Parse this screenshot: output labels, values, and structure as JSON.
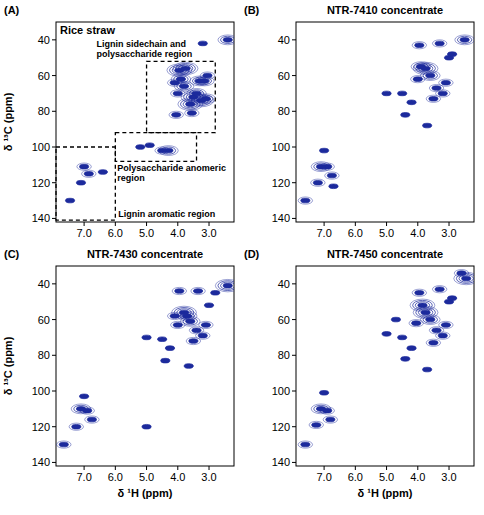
{
  "chart_data": [
    {
      "type": "scatter",
      "label": "(A)",
      "title": "Rice straw",
      "y_label": "δ ¹³C (ppm)",
      "color": "#1c2a9c",
      "grid": false,
      "xlim": [
        7.9,
        2.2
      ],
      "ylim": [
        30,
        142
      ],
      "xticks": [
        {
          "value": 7,
          "label": "7.0"
        },
        {
          "value": 6,
          "label": "6.0"
        },
        {
          "value": 5,
          "label": "5.0"
        },
        {
          "value": 4,
          "label": "4.0"
        },
        {
          "value": 3,
          "label": "3.0"
        }
      ],
      "yticks": [
        40,
        60,
        80,
        100,
        120,
        140
      ],
      "x": [
        2.4,
        3.95,
        3.75,
        3.3,
        3.5,
        3.1,
        3.6,
        3.25,
        3.4,
        4.05,
        3.9,
        3.15,
        3.05,
        4.3,
        4.5,
        4.9,
        5.2,
        4.0,
        3.55,
        3.8,
        6.85,
        7.0,
        7.45,
        6.4,
        7.1,
        3.2,
        4.1
      ],
      "values": [
        40,
        57,
        56,
        63,
        72,
        73,
        76,
        74,
        70,
        82,
        62,
        63,
        60,
        102,
        102,
        99,
        100,
        70,
        81,
        66,
        115,
        111,
        130,
        114,
        120,
        42,
        64
      ],
      "size": [
        3,
        4,
        4,
        3,
        4,
        3,
        4,
        4,
        3,
        2,
        3,
        3,
        2,
        3,
        2,
        1,
        1,
        2,
        2,
        3,
        2,
        2,
        1,
        1,
        1,
        1,
        2
      ],
      "annotations": [
        {
          "text": "Lignin sidechain and polysaccharide region",
          "x": [
            5.0,
            2.8
          ],
          "y": [
            52,
            92
          ]
        },
        {
          "text": "Polysaccharide anomeric region",
          "x": [
            6.0,
            3.4
          ],
          "y": [
            92,
            108
          ]
        },
        {
          "text": "Lignin aromatic region",
          "x": [
            7.9,
            6.0
          ],
          "y": [
            100,
            141
          ]
        }
      ]
    },
    {
      "type": "scatter",
      "label": "(B)",
      "title": "NTR-7410 concentrate",
      "color": "#1c2a9c",
      "grid": false,
      "xlim": [
        7.9,
        2.2
      ],
      "ylim": [
        30,
        142
      ],
      "xticks": [
        {
          "value": 7,
          "label": "7.0"
        },
        {
          "value": 6,
          "label": "6.0"
        },
        {
          "value": 5,
          "label": "5.0"
        },
        {
          "value": 4,
          "label": "4.0"
        },
        {
          "value": 3,
          "label": "3.0"
        }
      ],
      "yticks": [
        40,
        60,
        80,
        100,
        120,
        140
      ],
      "x": [
        2.5,
        3.75,
        3.9,
        3.3,
        3.6,
        4.0,
        3.2,
        3.5,
        4.2,
        3.4,
        3.0,
        4.5,
        5.0,
        3.95,
        6.9,
        7.1,
        6.75,
        7.2,
        7.6,
        7.0,
        4.4,
        3.7,
        2.9,
        3.1,
        6.7
      ],
      "values": [
        40,
        56,
        55,
        42,
        60,
        62,
        70,
        73,
        75,
        67,
        50,
        70,
        70,
        43,
        111,
        111,
        116,
        120,
        130,
        102,
        82,
        88,
        48,
        64,
        122
      ],
      "size": [
        3,
        4,
        3,
        2,
        3,
        2,
        2,
        2,
        1,
        2,
        1,
        1,
        1,
        2,
        2,
        3,
        2,
        2,
        2,
        1,
        1,
        1,
        1,
        2,
        1
      ]
    },
    {
      "type": "scatter",
      "label": "(C)",
      "title": "NTR-7430 concentrate",
      "x_label": "δ ¹H (ppm)",
      "y_label": "δ ¹³C (ppm)",
      "color": "#1c2a9c",
      "grid": false,
      "xlim": [
        7.9,
        2.2
      ],
      "ylim": [
        30,
        142
      ],
      "xticks": [
        {
          "value": 7,
          "label": "7.0"
        },
        {
          "value": 6,
          "label": "6.0"
        },
        {
          "value": 5,
          "label": "5.0"
        },
        {
          "value": 4,
          "label": "4.0"
        },
        {
          "value": 3,
          "label": "3.0"
        }
      ],
      "yticks": [
        40,
        60,
        80,
        100,
        120,
        140
      ],
      "x": [
        2.4,
        3.8,
        3.7,
        3.35,
        3.6,
        4.0,
        3.2,
        3.5,
        4.25,
        3.4,
        3.0,
        4.5,
        5.0,
        3.95,
        6.9,
        7.1,
        6.75,
        7.25,
        7.65,
        7.0,
        4.4,
        3.65,
        2.8,
        3.1,
        5.0,
        4.1
      ],
      "values": [
        41,
        56,
        58,
        44,
        61,
        63,
        69,
        72,
        76,
        66,
        52,
        71,
        70,
        44,
        111,
        110,
        116,
        120,
        130,
        103,
        83,
        86,
        45,
        63,
        120,
        58
      ],
      "size": [
        4,
        4,
        3,
        2,
        3,
        2,
        2,
        2,
        1,
        2,
        1,
        1,
        1,
        2,
        2,
        3,
        2,
        2,
        2,
        1,
        1,
        1,
        1,
        2,
        1,
        2
      ]
    },
    {
      "type": "scatter",
      "label": "(D)",
      "title": "NTR-7450 concentrate",
      "x_label": "δ ¹H (ppm)",
      "color": "#1c2a9c",
      "grid": false,
      "xlim": [
        7.9,
        2.2
      ],
      "ylim": [
        30,
        142
      ],
      "xticks": [
        {
          "value": 7,
          "label": "7.0"
        },
        {
          "value": 6,
          "label": "6.0"
        },
        {
          "value": 5,
          "label": "5.0"
        },
        {
          "value": 4,
          "label": "4.0"
        },
        {
          "value": 3,
          "label": "3.0"
        }
      ],
      "yticks": [
        40,
        60,
        80,
        100,
        120,
        140
      ],
      "x": [
        2.45,
        3.85,
        3.75,
        3.3,
        3.6,
        4.05,
        3.2,
        3.5,
        4.2,
        3.4,
        3.0,
        4.5,
        5.0,
        3.95,
        6.9,
        7.1,
        6.8,
        7.25,
        7.6,
        7.0,
        4.4,
        3.7,
        2.9,
        3.1,
        2.6,
        4.7
      ],
      "values": [
        37,
        52,
        56,
        43,
        60,
        62,
        69,
        73,
        76,
        66,
        50,
        70,
        68,
        45,
        111,
        110,
        116,
        119,
        130,
        101,
        82,
        88,
        48,
        63,
        34,
        60
      ],
      "size": [
        4,
        4,
        4,
        2,
        3,
        2,
        2,
        2,
        1,
        2,
        1,
        1,
        1,
        2,
        2,
        3,
        2,
        2,
        2,
        1,
        1,
        1,
        1,
        2,
        2,
        1
      ]
    }
  ]
}
